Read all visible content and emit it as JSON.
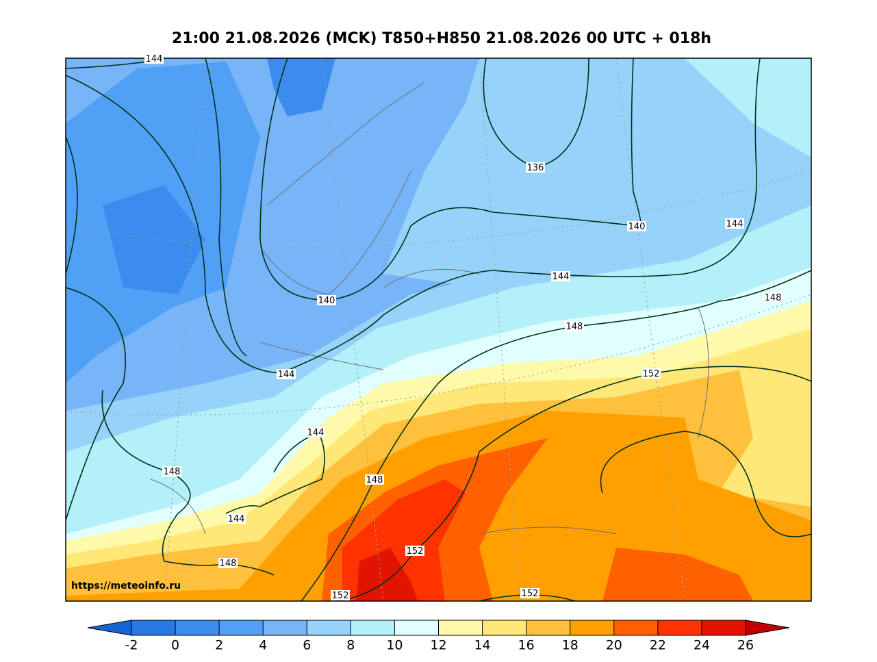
{
  "title": "21:00 21.08.2026 (MCK) T850+H850 21.08.2026 00 UTC + 018h",
  "map": {
    "contour_labels": [
      144,
      136,
      140,
      144,
      140,
      144,
      148,
      148,
      144,
      152,
      144,
      148,
      148,
      144,
      152,
      148,
      152,
      152
    ],
    "credit": "https://meteoinfo.ru"
  },
  "colorbar": {
    "ticks": [
      -2,
      0,
      2,
      4,
      6,
      8,
      10,
      12,
      14,
      16,
      18,
      20,
      22,
      24,
      26
    ],
    "colors": [
      "#2878e6",
      "#3c8cf0",
      "#50a0f5",
      "#78b4f8",
      "#96d2fa",
      "#b4f0fa",
      "#e1ffff",
      "#fffaaa",
      "#ffe878",
      "#ffc03c",
      "#ffa000",
      "#ff6000",
      "#ff3200",
      "#e11400"
    ],
    "under_color": "#1464d2",
    "over_color": "#c00000"
  }
}
